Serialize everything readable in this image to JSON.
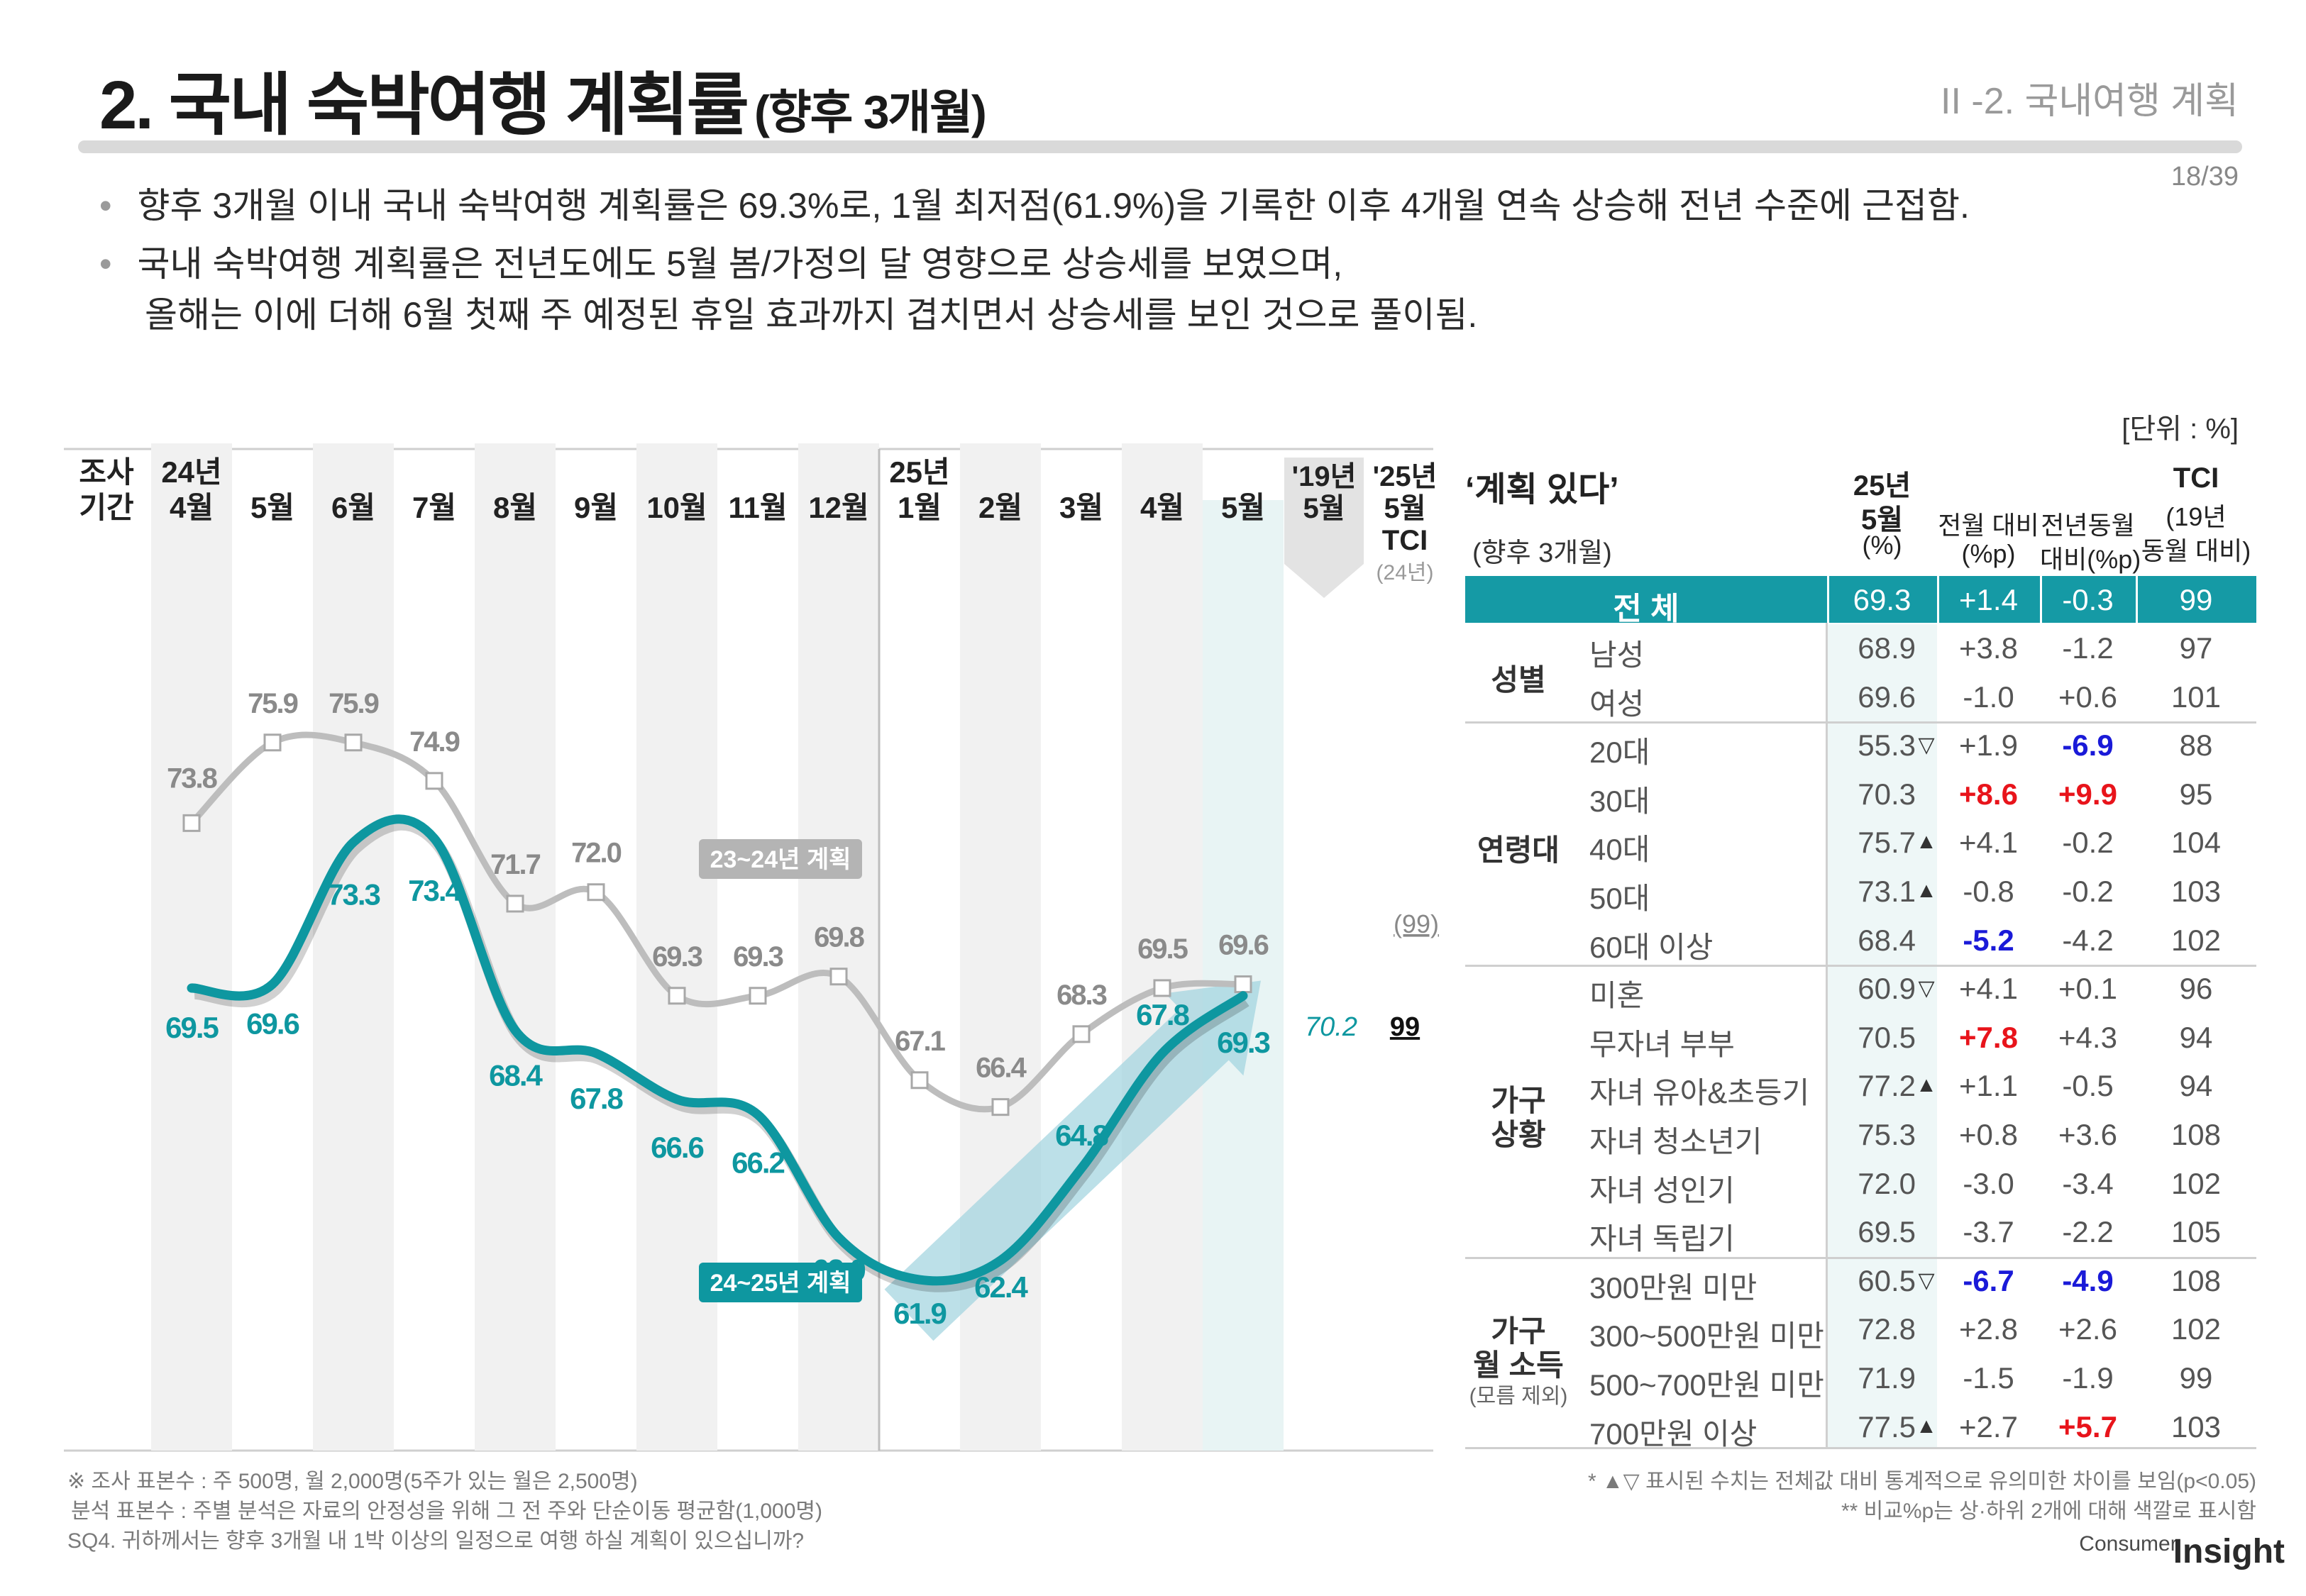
{
  "header": {
    "title": "2. 국내 숙박여행 계획률",
    "title_sub": "(향후 3개월)",
    "section": "II -2. 국내여행 계획",
    "page": "18/39"
  },
  "bullets": [
    "향후 3개월 이내 국내 숙박여행 계획률은 69.3%로, 1월 최저점(61.9%)을 기록한 이후 4개월 연속 상승해 전년 수준에 근접함.",
    "국내 숙박여행 계획률은 전년도에도 5월 봄/가정의 달 영향으로 상승세를 보였으며,",
    "올해는 이에 더해 6월 첫째 주 예정된 휴일 효과까지 겹치면서 상승세를 보인 것으로 풀이됨."
  ],
  "unit": "[단위 : %]",
  "chart_data": {
    "type": "line",
    "period_label": [
      "조사",
      "기간"
    ],
    "categories": [
      {
        "top": "24년",
        "bottom": "4월"
      },
      {
        "top": "",
        "bottom": "5월"
      },
      {
        "top": "",
        "bottom": "6월"
      },
      {
        "top": "",
        "bottom": "7월"
      },
      {
        "top": "",
        "bottom": "8월"
      },
      {
        "top": "",
        "bottom": "9월"
      },
      {
        "top": "",
        "bottom": "10월"
      },
      {
        "top": "",
        "bottom": "11월"
      },
      {
        "top": "",
        "bottom": "12월"
      },
      {
        "top": "25년",
        "bottom": "1월"
      },
      {
        "top": "",
        "bottom": "2월"
      },
      {
        "top": "",
        "bottom": "3월"
      },
      {
        "top": "",
        "bottom": "4월"
      },
      {
        "top": "",
        "bottom": "5월"
      }
    ],
    "series": [
      {
        "name": "23~24년 계획",
        "color": "#bdbdbd",
        "values": [
          73.8,
          75.9,
          75.9,
          74.9,
          71.7,
          72.0,
          69.3,
          69.3,
          69.8,
          67.1,
          66.4,
          68.3,
          69.5,
          69.6
        ]
      },
      {
        "name": "24~25년 계획",
        "color": "#0e97a0",
        "values": [
          69.5,
          69.6,
          73.3,
          73.4,
          68.4,
          67.8,
          66.6,
          66.2,
          63.0,
          61.9,
          62.4,
          64.8,
          67.8,
          69.3
        ]
      }
    ],
    "extra_columns": [
      {
        "top": "'19년",
        "bottom": "5월",
        "sub": "",
        "value": "70.2"
      },
      {
        "top": "'25년",
        "bottom": "5월",
        "sub": "TCI",
        "note": "(24년)",
        "value": "99",
        "prev_value": "(99)"
      }
    ],
    "ylim": [
      58,
      80
    ]
  },
  "table": {
    "title": "‘계획 있다’",
    "subtitle": "(향후 3개월)",
    "headers": [
      [
        "25년",
        "5월",
        "(%)"
      ],
      [
        "전월 대비",
        "(%p)"
      ],
      [
        "전년동월",
        "대비(%p)"
      ],
      [
        "TCI",
        "(19년",
        "동월 대비)"
      ]
    ],
    "total": {
      "label": "전  체",
      "values": [
        "69.3",
        "+1.4",
        "-0.3",
        "99"
      ]
    },
    "groups": [
      {
        "label": [
          "성별"
        ],
        "rows": [
          {
            "label": "남성",
            "pct": "68.9",
            "sig": "",
            "mom": "+3.8",
            "mom_c": "",
            "yoy": "-1.2",
            "yoy_c": "",
            "tci": "97"
          },
          {
            "label": "여성",
            "pct": "69.6",
            "sig": "",
            "mom": "-1.0",
            "mom_c": "",
            "yoy": "+0.6",
            "yoy_c": "",
            "tci": "101"
          }
        ]
      },
      {
        "label": [
          "연령대"
        ],
        "rows": [
          {
            "label": "20대",
            "pct": "55.3",
            "sig": "▽",
            "mom": "+1.9",
            "mom_c": "",
            "yoy": "-6.9",
            "yoy_c": "blue",
            "tci": "88"
          },
          {
            "label": "30대",
            "pct": "70.3",
            "sig": "",
            "mom": "+8.6",
            "mom_c": "red",
            "yoy": "+9.9",
            "yoy_c": "red",
            "tci": "95"
          },
          {
            "label": "40대",
            "pct": "75.7",
            "sig": "▲",
            "mom": "+4.1",
            "mom_c": "",
            "yoy": "-0.2",
            "yoy_c": "",
            "tci": "104"
          },
          {
            "label": "50대",
            "pct": "73.1",
            "sig": "▲",
            "mom": "-0.8",
            "mom_c": "",
            "yoy": "-0.2",
            "yoy_c": "",
            "tci": "103"
          },
          {
            "label": "60대 이상",
            "pct": "68.4",
            "sig": "",
            "mom": "-5.2",
            "mom_c": "blue",
            "yoy": "-4.2",
            "yoy_c": "",
            "tci": "102"
          }
        ]
      },
      {
        "label": [
          "가구",
          "상황"
        ],
        "rows": [
          {
            "label": "미혼",
            "pct": "60.9",
            "sig": "▽",
            "mom": "+4.1",
            "mom_c": "",
            "yoy": "+0.1",
            "yoy_c": "",
            "tci": "96"
          },
          {
            "label": "무자녀 부부",
            "pct": "70.5",
            "sig": "",
            "mom": "+7.8",
            "mom_c": "red",
            "yoy": "+4.3",
            "yoy_c": "",
            "tci": "94"
          },
          {
            "label": "자녀 유아&초등기",
            "pct": "77.2",
            "sig": "▲",
            "mom": "+1.1",
            "mom_c": "",
            "yoy": "-0.5",
            "yoy_c": "",
            "tci": "94"
          },
          {
            "label": "자녀 청소년기",
            "pct": "75.3",
            "sig": "",
            "mom": "+0.8",
            "mom_c": "",
            "yoy": "+3.6",
            "yoy_c": "",
            "tci": "108"
          },
          {
            "label": "자녀 성인기",
            "pct": "72.0",
            "sig": "",
            "mom": "-3.0",
            "mom_c": "",
            "yoy": "-3.4",
            "yoy_c": "",
            "tci": "102"
          },
          {
            "label": "자녀 독립기",
            "pct": "69.5",
            "sig": "",
            "mom": "-3.7",
            "mom_c": "",
            "yoy": "-2.2",
            "yoy_c": "",
            "tci": "105"
          }
        ]
      },
      {
        "label": [
          "가구",
          "월 소득"
        ],
        "label_note": "(모름 제외)",
        "rows": [
          {
            "label": "300만원 미만",
            "pct": "60.5",
            "sig": "▽",
            "mom": "-6.7",
            "mom_c": "blue",
            "yoy": "-4.9",
            "yoy_c": "blue",
            "tci": "108"
          },
          {
            "label": "300~500만원 미만",
            "pct": "72.8",
            "sig": "",
            "mom": "+2.8",
            "mom_c": "",
            "yoy": "+2.6",
            "yoy_c": "",
            "tci": "102"
          },
          {
            "label": "500~700만원 미만",
            "pct": "71.9",
            "sig": "",
            "mom": "-1.5",
            "mom_c": "",
            "yoy": "-1.9",
            "yoy_c": "",
            "tci": "99"
          },
          {
            "label": "700만원 이상",
            "pct": "77.5",
            "sig": "▲",
            "mom": "+2.7",
            "mom_c": "",
            "yoy": "+5.7",
            "yoy_c": "red",
            "tci": "103"
          }
        ]
      }
    ]
  },
  "footnotes_left": [
    "※ 조사 표본수 : 주 500명, 월 2,000명(5주가 있는 월은 2,500명)",
    "분석 표본수 : 주별 분석은 자료의 안정성을 위해 그 전 주와 단순이동 평균함(1,000명)",
    "SQ4. 귀하께서는 향후 3개월 내 1박 이상의 일정으로 여행 하실 계획이 있으십니까?"
  ],
  "footnotes_right": [
    "* ▲▽ 표시된 수치는 전체값 대비 통계적으로 유의미한 차이를 보임(p<0.05)",
    "** 비교%p는 상·하위 2개에 대해 색깔로 표시함"
  ],
  "logo": {
    "top": "Consumer",
    "bottom": "Insight"
  },
  "colors": {
    "teal": "#0e97a0",
    "gray_line": "#bdbdbd",
    "header_bg": "#159aa5",
    "red": "#e8141b",
    "blue": "#1a1ad8"
  }
}
